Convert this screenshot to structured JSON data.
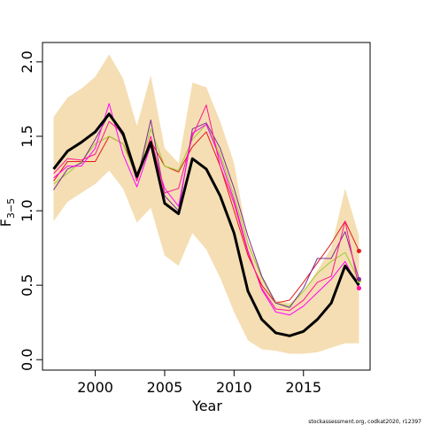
{
  "chart_data": {
    "type": "line",
    "xlabel": "Year",
    "ylabel": "F",
    "ylabel_sub": "3−5",
    "footer": "stockassessment.org, codkat2020, r12397",
    "x": [
      1997,
      1998,
      1999,
      2000,
      2001,
      2002,
      2003,
      2004,
      2005,
      2006,
      2007,
      2008,
      2009,
      2010,
      2011,
      2012,
      2013,
      2014,
      2015,
      2016,
      2017,
      2018,
      2019
    ],
    "xlim": [
      1996.2,
      2019.8
    ],
    "ylim": [
      -0.07,
      2.13
    ],
    "xticks": [
      2000,
      2005,
      2010,
      2015
    ],
    "yticks": [
      {
        "value": 0,
        "label": "0.0"
      },
      0.5,
      {
        "value": 1,
        "label": "1.0"
      },
      1.5,
      {
        "value": 2,
        "label": "2.0"
      }
    ],
    "band": {
      "color": "#f5deb3",
      "lower": [
        0.93,
        1.06,
        1.12,
        1.18,
        1.27,
        1.15,
        0.92,
        1.02,
        0.7,
        0.63,
        0.85,
        0.74,
        0.55,
        0.32,
        0.13,
        0.07,
        0.06,
        0.04,
        0.04,
        0.05,
        0.08,
        0.11,
        0.11
      ],
      "upper": [
        1.63,
        1.76,
        1.82,
        1.9,
        2.05,
        1.89,
        1.57,
        1.91,
        1.42,
        1.32,
        1.86,
        1.83,
        1.6,
        1.32,
        0.8,
        0.56,
        0.4,
        0.38,
        0.46,
        0.6,
        0.75,
        1.15,
        0.83
      ]
    },
    "endpoint_dots": true,
    "series": [
      {
        "color": "#e41a1c",
        "width": 1,
        "values": [
          1.2,
          1.33,
          1.33,
          1.33,
          1.5,
          1.45,
          1.25,
          1.47,
          1.3,
          1.26,
          1.43,
          1.53,
          1.3,
          1.0,
          0.7,
          0.5,
          0.38,
          0.4,
          0.52,
          0.65,
          0.78,
          0.93,
          0.73
        ]
      },
      {
        "color": "#9acd32",
        "width": 1,
        "values": [
          1.18,
          1.25,
          1.33,
          1.45,
          1.5,
          1.45,
          1.22,
          1.55,
          1.3,
          1.27,
          1.48,
          1.58,
          1.38,
          1.1,
          0.78,
          0.55,
          0.38,
          0.36,
          0.46,
          0.58,
          0.66,
          0.72,
          0.53
        ]
      },
      {
        "color": "#7b2d8e",
        "width": 1,
        "values": [
          1.14,
          1.28,
          1.32,
          1.48,
          1.65,
          1.5,
          1.2,
          1.61,
          1.1,
          1.0,
          1.55,
          1.59,
          1.42,
          1.15,
          0.83,
          0.56,
          0.38,
          0.35,
          0.48,
          0.68,
          0.68,
          0.86,
          0.54
        ]
      },
      {
        "color": "#ff00ff",
        "width": 1,
        "values": [
          1.22,
          1.3,
          1.3,
          1.42,
          1.72,
          1.38,
          1.16,
          1.44,
          1.15,
          1.03,
          1.52,
          1.58,
          1.35,
          1.07,
          0.73,
          0.47,
          0.32,
          0.3,
          0.36,
          0.45,
          0.54,
          0.66,
          0.48
        ]
      },
      {
        "color": "#ff1493",
        "width": 1,
        "values": [
          1.25,
          1.35,
          1.34,
          1.38,
          1.6,
          1.52,
          1.2,
          1.5,
          1.12,
          1.15,
          1.5,
          1.71,
          1.3,
          1.05,
          0.72,
          0.48,
          0.34,
          0.33,
          0.4,
          0.52,
          0.56,
          0.93,
          0.48
        ]
      },
      {
        "color": "#000000",
        "width": 3,
        "values": [
          1.28,
          1.4,
          1.46,
          1.53,
          1.65,
          1.52,
          1.23,
          1.46,
          1.05,
          0.98,
          1.35,
          1.28,
          1.1,
          0.85,
          0.46,
          0.27,
          0.18,
          0.16,
          0.19,
          0.27,
          0.38,
          0.63,
          0.5
        ]
      }
    ]
  }
}
